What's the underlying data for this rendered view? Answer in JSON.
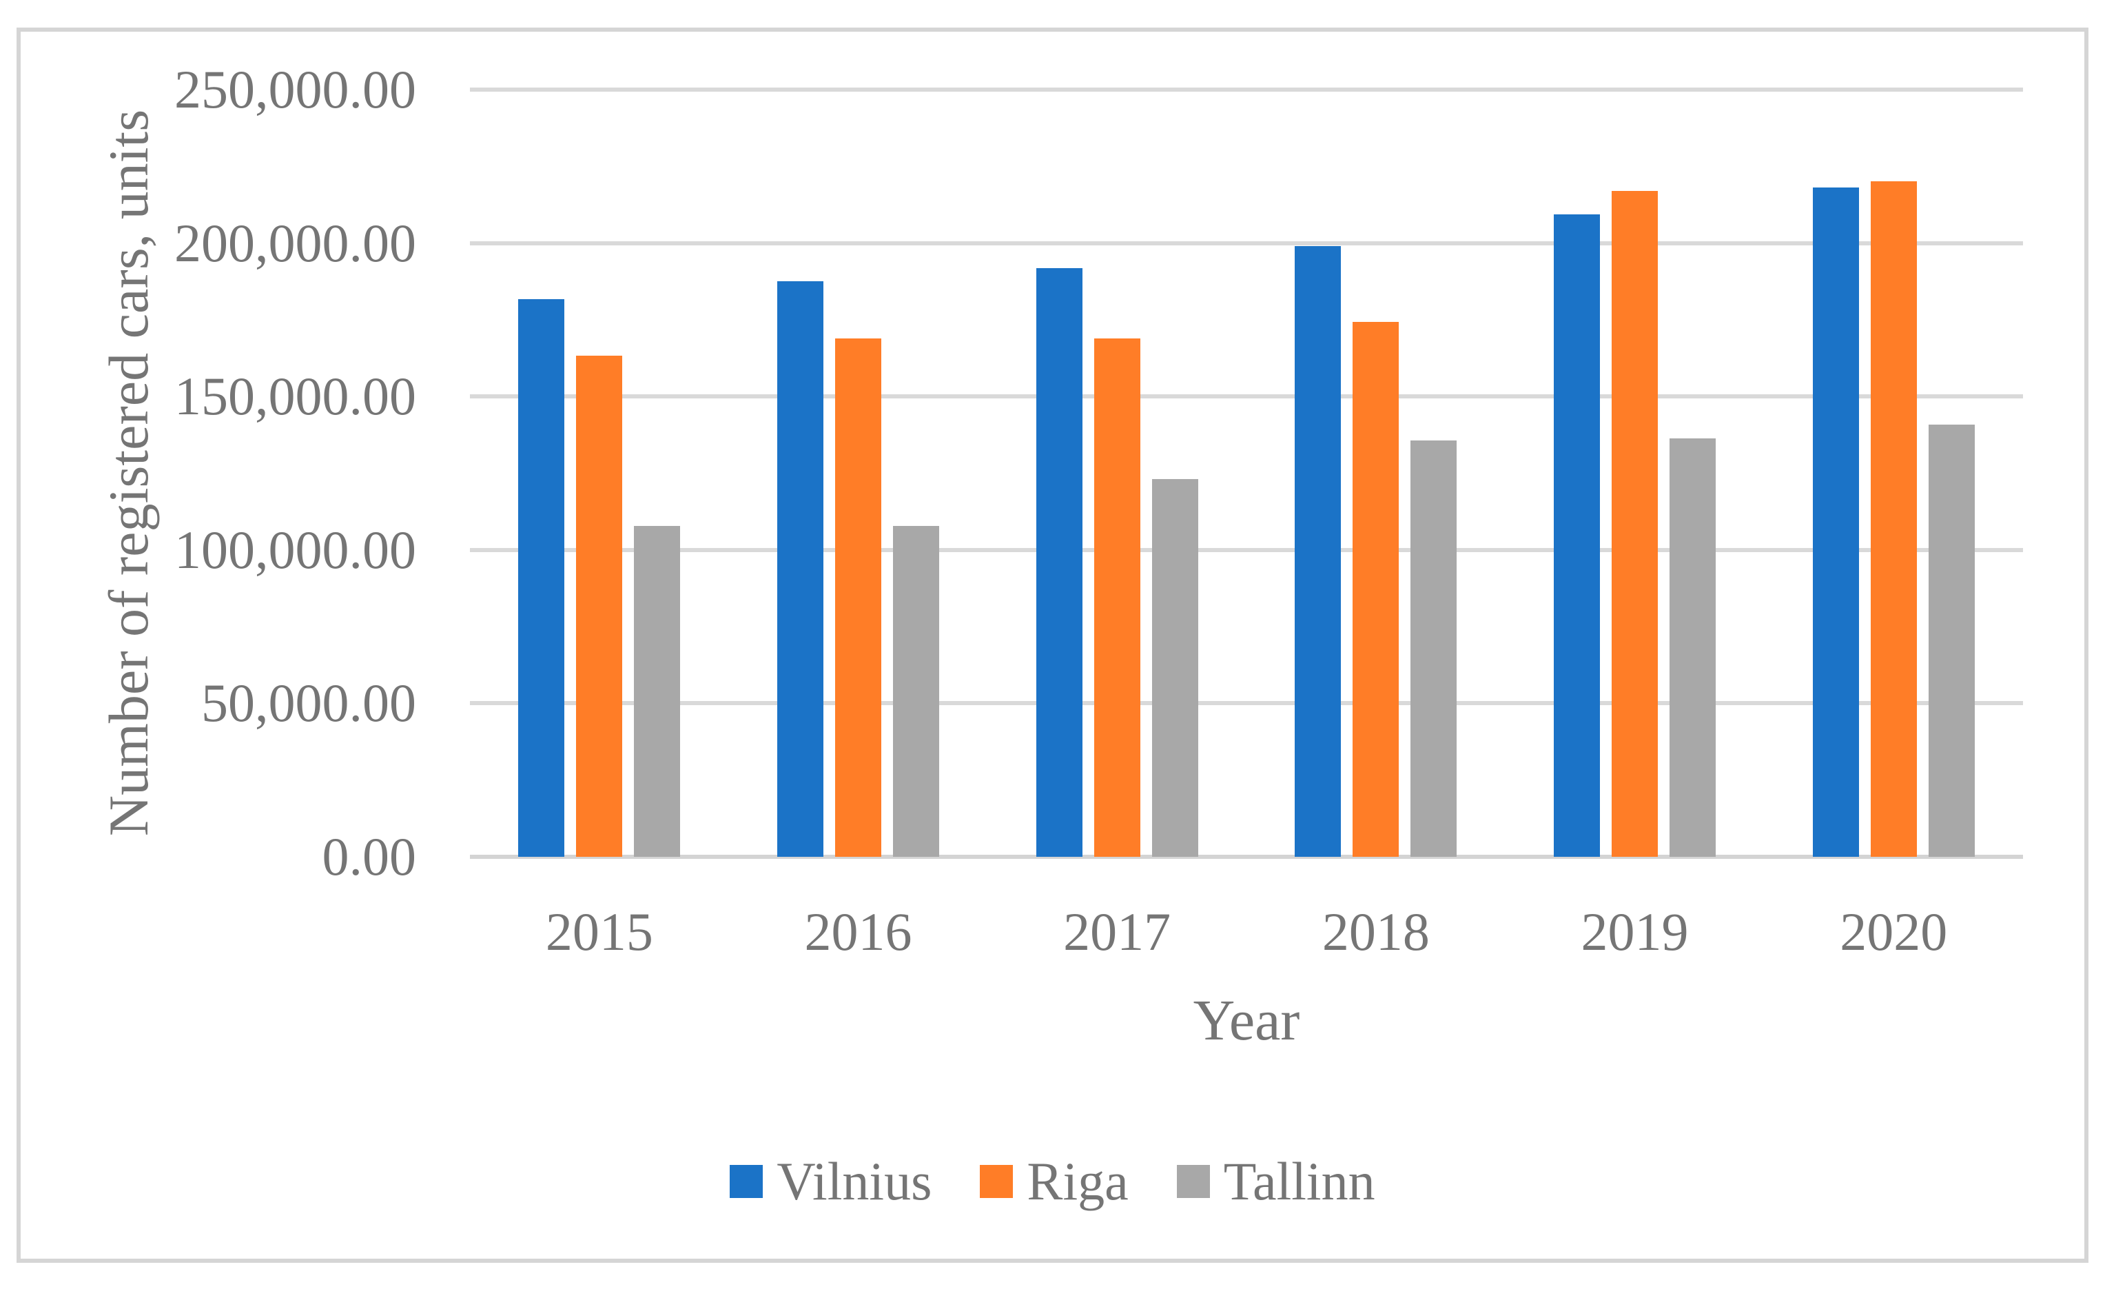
{
  "style": {
    "background": "#ffffff",
    "frame_border_color": "#d5d5d5",
    "text_color": "#757575",
    "gridline_color": "#d9d9d9",
    "axis_line_color": "#d4d4d4"
  },
  "chart_data": {
    "type": "bar",
    "title": "",
    "categories": [
      "2015",
      "2016",
      "2017",
      "2018",
      "2019",
      "2020"
    ],
    "series": [
      {
        "name": "Vilnius",
        "color": "#1b73c7",
        "values": [
          181700,
          187500,
          191900,
          199000,
          209300,
          218100
        ]
      },
      {
        "name": "Riga",
        "color": "#ff7d27",
        "values": [
          163300,
          168900,
          168900,
          174300,
          217000,
          220100
        ]
      },
      {
        "name": "Tallinn",
        "color": "#a8a8a8",
        "values": [
          107800,
          107800,
          123100,
          135700,
          136300,
          140800
        ]
      }
    ],
    "xlabel": "Year",
    "ylabel": "Number of registered cars, units",
    "ylim": [
      0,
      250000
    ],
    "y_tick_step": 50000,
    "y_tick_labels": [
      "0.00",
      "50,000.00",
      "100,000.00",
      "150,000.00",
      "200,000.00",
      "250,000.00"
    ],
    "grid": true,
    "legend_position": "bottom"
  }
}
